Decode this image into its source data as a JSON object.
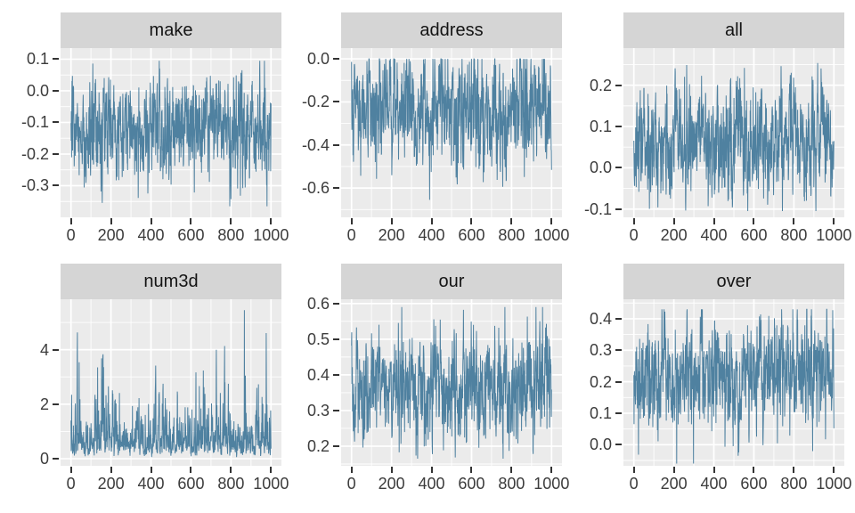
{
  "figure": {
    "background": "#ffffff",
    "panel_bg": "#ebebeb",
    "strip_bg": "#d5d5d5",
    "grid_color": "#ffffff",
    "axis_text_color": "#3c3c3c",
    "strip_text_color": "#141414",
    "tick_color": "#333333",
    "line_color": "#4f81a0"
  },
  "chart_data": [
    {
      "type": "line",
      "title": "make",
      "x": {
        "ticks": [
          0,
          200,
          400,
          600,
          800,
          1000
        ],
        "labels": [
          "0",
          "200",
          "400",
          "600",
          "800",
          "1000"
        ],
        "lim": [
          -52,
          1052
        ],
        "n": 1000
      },
      "y": {
        "ticks": [
          0.1,
          0.0,
          -0.1,
          -0.2,
          -0.3
        ],
        "labels": [
          "0.1",
          "0.0",
          "-0.1",
          "-0.2",
          "-0.3"
        ],
        "lim": [
          -0.4,
          0.135
        ]
      },
      "series": {
        "center": -0.115,
        "spread": 0.062,
        "min": -0.365,
        "max": 0.095,
        "skew": false,
        "seed": 101
      }
    },
    {
      "type": "line",
      "title": "address",
      "x": {
        "ticks": [
          0,
          200,
          400,
          600,
          800,
          1000
        ],
        "labels": [
          "0",
          "200",
          "400",
          "600",
          "800",
          "1000"
        ],
        "lim": [
          -52,
          1052
        ],
        "n": 1000
      },
      "y": {
        "ticks": [
          0.0,
          -0.2,
          -0.4,
          -0.6
        ],
        "labels": [
          "0.0",
          "-0.2",
          "-0.4",
          "-0.6"
        ],
        "lim": [
          -0.736,
          0.05
        ]
      },
      "series": {
        "center": -0.245,
        "spread": 0.105,
        "min": -0.72,
        "max": 0.0,
        "skew": false,
        "seed": 202
      }
    },
    {
      "type": "line",
      "title": "all",
      "x": {
        "ticks": [
          0,
          200,
          400,
          600,
          800,
          1000
        ],
        "labels": [
          "0",
          "200",
          "400",
          "600",
          "800",
          "1000"
        ],
        "lim": [
          -52,
          1052
        ],
        "n": 1000
      },
      "y": {
        "ticks": [
          0.2,
          0.1,
          0.0,
          -0.1
        ],
        "labels": [
          "0.2",
          "0.1",
          "0.0",
          "-0.1"
        ],
        "lim": [
          -0.12,
          0.29
        ]
      },
      "series": {
        "center": 0.058,
        "spread": 0.055,
        "min": -0.105,
        "max": 0.265,
        "skew": false,
        "seed": 303
      }
    },
    {
      "type": "line",
      "title": "num3d",
      "x": {
        "ticks": [
          0,
          200,
          400,
          600,
          800,
          1000
        ],
        "labels": [
          "0",
          "200",
          "400",
          "600",
          "800",
          "1000"
        ],
        "lim": [
          -52,
          1052
        ],
        "n": 1000
      },
      "y": {
        "ticks": [
          4,
          2,
          0
        ],
        "labels": [
          "4",
          "2",
          "0"
        ],
        "lim": [
          -0.26,
          5.85
        ]
      },
      "series": {
        "center": 0.68,
        "spread": 0.52,
        "min": 0.02,
        "max": 5.45,
        "skew": true,
        "seed": 404
      }
    },
    {
      "type": "line",
      "title": "our",
      "x": {
        "ticks": [
          0,
          200,
          400,
          600,
          800,
          1000
        ],
        "labels": [
          "0",
          "200",
          "400",
          "600",
          "800",
          "1000"
        ],
        "lim": [
          -52,
          1052
        ],
        "n": 1000
      },
      "y": {
        "ticks": [
          0.6,
          0.5,
          0.4,
          0.3,
          0.2
        ],
        "labels": [
          "0.6",
          "0.5",
          "0.4",
          "0.3",
          "0.2"
        ],
        "lim": [
          0.145,
          0.612
        ]
      },
      "series": {
        "center": 0.365,
        "spread": 0.06,
        "min": 0.165,
        "max": 0.59,
        "skew": false,
        "seed": 505
      }
    },
    {
      "type": "line",
      "title": "over",
      "x": {
        "ticks": [
          0,
          200,
          400,
          600,
          800,
          1000
        ],
        "labels": [
          "0",
          "200",
          "400",
          "600",
          "800",
          "1000"
        ],
        "lim": [
          -52,
          1052
        ],
        "n": 1000
      },
      "y": {
        "ticks": [
          0.4,
          0.3,
          0.2,
          0.1,
          0.0
        ],
        "labels": [
          "0.4",
          "0.3",
          "0.2",
          "0.1",
          "0.0"
        ],
        "lim": [
          -0.067,
          0.462
        ]
      },
      "series": {
        "center": 0.228,
        "spread": 0.066,
        "min": -0.06,
        "max": 0.43,
        "skew": false,
        "seed": 606
      }
    }
  ]
}
